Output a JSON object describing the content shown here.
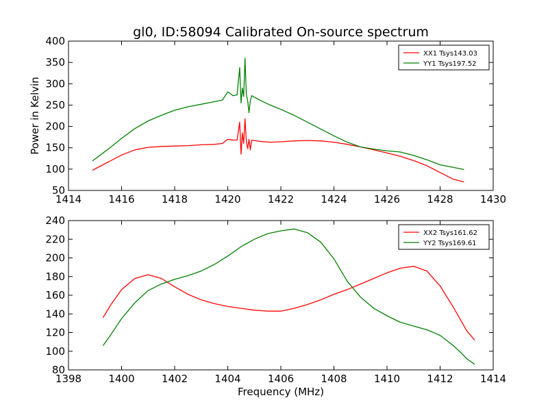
{
  "figure": {
    "title": "gl0, ID:58094 Calibrated On-source spectrum",
    "ylabel": "Power in Kelvin",
    "xlabel": "Frequency (MHz)"
  },
  "chart_data": [
    {
      "type": "line",
      "title": "gl0, ID:58094 Calibrated On-source spectrum",
      "ylabel": "Power in Kelvin",
      "xlabel": "",
      "xlim": [
        1414,
        1430
      ],
      "ylim": [
        50,
        400
      ],
      "xticks": [
        1414,
        1416,
        1418,
        1420,
        1422,
        1424,
        1426,
        1428,
        1430
      ],
      "yticks": [
        50,
        100,
        150,
        200,
        250,
        300,
        350,
        400
      ],
      "grid": false,
      "legend_position": "top-right",
      "series": [
        {
          "name": "XX1 Tsys143.03",
          "color": "#ff0000",
          "x": [
            1414.9,
            1415.2,
            1415.6,
            1416.0,
            1416.5,
            1417.0,
            1417.5,
            1418.0,
            1418.5,
            1419.0,
            1419.5,
            1419.8,
            1420.0,
            1420.2,
            1420.35,
            1420.45,
            1420.5,
            1420.55,
            1420.6,
            1420.65,
            1420.7,
            1420.75,
            1420.8,
            1420.85,
            1420.9,
            1421.2,
            1421.6,
            1422.0,
            1422.5,
            1423.0,
            1423.5,
            1424.0,
            1424.5,
            1425.0,
            1425.5,
            1426.0,
            1426.5,
            1427.0,
            1427.5,
            1428.0,
            1428.5,
            1428.9
          ],
          "y": [
            97,
            107,
            120,
            133,
            145,
            151,
            153,
            154,
            155,
            157,
            158,
            160,
            170,
            168,
            168,
            210,
            135,
            185,
            160,
            218,
            165,
            148,
            170,
            145,
            168,
            165,
            163,
            164,
            166,
            167,
            166,
            163,
            158,
            152,
            145,
            138,
            130,
            120,
            108,
            92,
            76,
            70
          ]
        },
        {
          "name": "YY1 Tsys197.52",
          "color": "#007f00",
          "x": [
            1414.9,
            1415.2,
            1415.6,
            1416.0,
            1416.5,
            1417.0,
            1417.5,
            1418.0,
            1418.5,
            1419.0,
            1419.5,
            1419.8,
            1420.0,
            1420.2,
            1420.35,
            1420.45,
            1420.5,
            1420.55,
            1420.6,
            1420.65,
            1420.7,
            1420.75,
            1420.8,
            1420.85,
            1420.9,
            1421.2,
            1421.6,
            1422.0,
            1422.5,
            1423.0,
            1423.5,
            1424.0,
            1424.5,
            1425.0,
            1425.5,
            1426.0,
            1426.5,
            1427.0,
            1427.5,
            1428.0,
            1428.5,
            1428.9
          ],
          "y": [
            119,
            133,
            152,
            172,
            195,
            213,
            226,
            238,
            246,
            252,
            258,
            262,
            281,
            272,
            274,
            338,
            255,
            290,
            270,
            360,
            275,
            260,
            232,
            260,
            272,
            262,
            250,
            240,
            226,
            210,
            194,
            178,
            163,
            152,
            147,
            143,
            140,
            132,
            122,
            110,
            104,
            99
          ]
        }
      ]
    },
    {
      "type": "line",
      "title": "",
      "ylabel": "",
      "xlabel": "Frequency (MHz)",
      "xlim": [
        1398,
        1414
      ],
      "ylim": [
        80,
        240
      ],
      "xticks": [
        1398,
        1400,
        1402,
        1404,
        1406,
        1408,
        1410,
        1412,
        1414
      ],
      "yticks": [
        80,
        100,
        120,
        140,
        160,
        180,
        200,
        220,
        240
      ],
      "grid": false,
      "legend_position": "top-right",
      "series": [
        {
          "name": "XX2 Tsys161.62",
          "color": "#ff0000",
          "x": [
            1399.3,
            1399.6,
            1400.0,
            1400.5,
            1401.0,
            1401.5,
            1402.0,
            1402.5,
            1403.0,
            1403.5,
            1404.0,
            1404.5,
            1405.0,
            1405.5,
            1406.0,
            1406.5,
            1407.0,
            1407.5,
            1408.0,
            1408.5,
            1409.0,
            1409.5,
            1410.0,
            1410.5,
            1411.0,
            1411.5,
            1412.0,
            1412.5,
            1412.8,
            1413.0,
            1413.3
          ],
          "y": [
            136,
            150,
            166,
            178,
            182,
            178,
            169,
            161,
            155,
            151,
            148,
            146,
            144,
            143,
            143,
            146,
            150,
            155,
            161,
            166,
            172,
            178,
            184,
            189,
            191,
            186,
            170,
            147,
            132,
            122,
            112
          ]
        },
        {
          "name": "YY2 Tsys169.61",
          "color": "#007f00",
          "x": [
            1399.3,
            1399.6,
            1400.0,
            1400.5,
            1401.0,
            1401.5,
            1402.0,
            1402.5,
            1403.0,
            1403.5,
            1404.0,
            1404.5,
            1405.0,
            1405.5,
            1406.0,
            1406.5,
            1407.0,
            1407.5,
            1408.0,
            1408.5,
            1409.0,
            1409.5,
            1410.0,
            1410.5,
            1411.0,
            1411.5,
            1412.0,
            1412.5,
            1412.8,
            1413.0,
            1413.3
          ],
          "y": [
            106,
            118,
            135,
            152,
            165,
            172,
            177,
            181,
            186,
            193,
            202,
            212,
            220,
            226,
            229,
            231,
            227,
            217,
            199,
            175,
            158,
            146,
            138,
            131,
            127,
            123,
            117,
            106,
            98,
            92,
            86
          ]
        }
      ]
    }
  ]
}
